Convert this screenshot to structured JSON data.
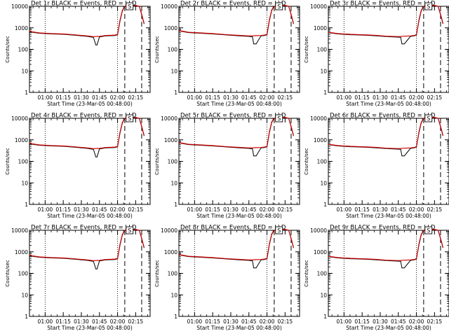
{
  "figure": {
    "ylabel": "Counts/sec",
    "xlabel": "Start Time (23-Mar-05 00:48:00)",
    "x_ticks": [
      "01:00",
      "01:15",
      "01:30",
      "01:45",
      "02:00",
      "02:15"
    ],
    "x_tick_minutes": [
      0,
      15,
      30,
      45,
      60,
      75
    ],
    "y_ticks": [
      "10000",
      "1000",
      "100",
      "10",
      "1"
    ],
    "y_tick_values": [
      10000,
      1000,
      100,
      10,
      1
    ],
    "marker_label": "S"
  },
  "colors": {
    "events": "#000000",
    "lld": "#cc0000",
    "background": "#ffffff"
  },
  "chart_data": [
    {
      "type": "line",
      "title": "Det 1r BLACK = Events, RED = LLD",
      "xlabel": "Start Time (23-Mar-05 00:48:00)",
      "ylabel": "Counts/sec",
      "y_scale": "log",
      "ylim": [
        1,
        10000
      ],
      "xlim_minutes_from_01_00": [
        -13,
        87
      ],
      "grid": false,
      "vlines_dotted": [
        0,
        60
      ],
      "vlines_dashed": [
        66,
        80
      ],
      "series": [
        {
          "name": "Events",
          "x": [
            -13,
            -5,
            5,
            15,
            25,
            35,
            40,
            42,
            43,
            45,
            50,
            55,
            58,
            60,
            62,
            64,
            66,
            68,
            69,
            70,
            72,
            74,
            75,
            78,
            80,
            82
          ],
          "y": [
            650,
            560,
            520,
            500,
            450,
            400,
            360,
            160,
            160,
            380,
            420,
            430,
            440,
            480,
            2000,
            6000,
            10000,
            11000,
            11000,
            11000,
            11000,
            11000,
            11000,
            10000,
            4000,
            1500
          ]
        },
        {
          "name": "LLD",
          "x": [
            -13,
            -5,
            5,
            15,
            25,
            35,
            40,
            45,
            50,
            55,
            58,
            60,
            62,
            64,
            66,
            68,
            70,
            75,
            78,
            80,
            82
          ],
          "y": [
            680,
            580,
            540,
            520,
            470,
            420,
            390,
            400,
            440,
            450,
            460,
            500,
            2200,
            6500,
            10000,
            11000,
            11000,
            11000,
            10000,
            4200,
            1600
          ]
        }
      ]
    },
    {
      "type": "line",
      "title": "Det 2r BLACK = Events, RED = LLD",
      "xlabel": "Start Time (23-Mar-05 00:48:00)",
      "ylabel": "Counts/sec",
      "y_scale": "log",
      "ylim": [
        1,
        10000
      ],
      "xlim_minutes_from_01_00": [
        -13,
        87
      ],
      "grid": false,
      "vlines_dotted": [
        0,
        60
      ],
      "vlines_dashed": [
        66,
        80
      ],
      "series": [
        {
          "name": "Events",
          "x": [
            -13,
            -5,
            5,
            15,
            25,
            35,
            45,
            48,
            49,
            51,
            55,
            58,
            60,
            62,
            64,
            66,
            68,
            70,
            75,
            78,
            80,
            82
          ],
          "y": [
            720,
            600,
            560,
            520,
            470,
            430,
            400,
            380,
            180,
            180,
            420,
            440,
            480,
            2200,
            6500,
            10000,
            11000,
            11000,
            11000,
            10000,
            4000,
            1500
          ]
        },
        {
          "name": "LLD",
          "x": [
            -13,
            -5,
            5,
            15,
            25,
            35,
            45,
            50,
            55,
            58,
            60,
            62,
            64,
            66,
            68,
            70,
            75,
            78,
            80,
            82
          ],
          "y": [
            750,
            620,
            580,
            540,
            490,
            450,
            420,
            430,
            440,
            460,
            500,
            2400,
            7000,
            10000,
            11000,
            11000,
            11000,
            10000,
            4200,
            1600
          ]
        }
      ]
    },
    {
      "type": "line",
      "title": "Det 3r BLACK = Events, RED = LLD",
      "xlabel": "Start Time (23-Mar-05 00:48:00)",
      "ylabel": "Counts/sec",
      "y_scale": "log",
      "ylim": [
        1,
        10000
      ],
      "xlim_minutes_from_01_00": [
        -13,
        87
      ],
      "grid": false,
      "vlines_dotted": [
        0,
        60
      ],
      "vlines_dashed": [
        66,
        80
      ],
      "series": [
        {
          "name": "Events",
          "x": [
            -13,
            -5,
            5,
            15,
            25,
            35,
            44,
            47,
            48,
            50,
            55,
            58,
            60,
            62,
            64,
            66,
            68,
            70,
            75,
            78,
            80,
            82
          ],
          "y": [
            600,
            520,
            480,
            460,
            430,
            390,
            370,
            360,
            180,
            180,
            400,
            420,
            460,
            2000,
            6000,
            10000,
            11000,
            11000,
            11000,
            10000,
            4000,
            1500
          ]
        },
        {
          "name": "LLD",
          "x": [
            -13,
            -5,
            5,
            15,
            25,
            35,
            45,
            50,
            55,
            58,
            60,
            62,
            64,
            66,
            68,
            70,
            75,
            78,
            80,
            82
          ],
          "y": [
            620,
            540,
            500,
            480,
            450,
            410,
            390,
            410,
            420,
            440,
            480,
            2200,
            6500,
            10000,
            11000,
            11000,
            11000,
            10000,
            4200,
            1600
          ]
        }
      ]
    },
    {
      "type": "line",
      "title": "Det 4r BLACK = Events, RED = LLD",
      "xlabel": "Start Time (23-Mar-05 00:48:00)",
      "ylabel": "Counts/sec",
      "y_scale": "log",
      "ylim": [
        1,
        10000
      ],
      "xlim_minutes_from_01_00": [
        -13,
        87
      ],
      "grid": false,
      "vlines_dotted": [
        0,
        60
      ],
      "vlines_dashed": [
        66,
        80
      ],
      "series": [
        {
          "name": "Events",
          "x": [
            -13,
            -5,
            5,
            15,
            25,
            35,
            40,
            42,
            43,
            45,
            50,
            55,
            58,
            60,
            62,
            64,
            66,
            68,
            70,
            75,
            78,
            80,
            82
          ],
          "y": [
            650,
            560,
            520,
            500,
            450,
            400,
            360,
            160,
            160,
            380,
            420,
            430,
            440,
            480,
            2000,
            6000,
            10000,
            11000,
            11000,
            11000,
            10000,
            4000,
            1500
          ]
        },
        {
          "name": "LLD",
          "x": [
            -13,
            -5,
            5,
            15,
            25,
            35,
            40,
            45,
            50,
            55,
            58,
            60,
            62,
            64,
            66,
            68,
            70,
            75,
            78,
            80,
            82
          ],
          "y": [
            680,
            580,
            540,
            520,
            470,
            420,
            390,
            400,
            440,
            450,
            460,
            500,
            2200,
            6500,
            10000,
            11000,
            11000,
            11000,
            10000,
            4200,
            1600
          ]
        }
      ]
    },
    {
      "type": "line",
      "title": "Det 5r BLACK = Events, RED = LLD",
      "xlabel": "Start Time (23-Mar-05 00:48:00)",
      "ylabel": "Counts/sec",
      "y_scale": "log",
      "ylim": [
        1,
        10000
      ],
      "xlim_minutes_from_01_00": [
        -13,
        87
      ],
      "grid": false,
      "vlines_dotted": [
        0,
        60
      ],
      "vlines_dashed": [
        66,
        80
      ],
      "series": [
        {
          "name": "Events",
          "x": [
            -13,
            -5,
            5,
            15,
            25,
            35,
            45,
            48,
            49,
            51,
            55,
            58,
            60,
            62,
            64,
            66,
            68,
            70,
            75,
            78,
            80,
            82
          ],
          "y": [
            720,
            600,
            560,
            520,
            470,
            430,
            400,
            380,
            180,
            180,
            420,
            440,
            480,
            2200,
            6500,
            10000,
            11000,
            11000,
            11000,
            10000,
            4000,
            1500
          ]
        },
        {
          "name": "LLD",
          "x": [
            -13,
            -5,
            5,
            15,
            25,
            35,
            45,
            50,
            55,
            58,
            60,
            62,
            64,
            66,
            68,
            70,
            75,
            78,
            80,
            82
          ],
          "y": [
            750,
            620,
            580,
            540,
            490,
            450,
            420,
            430,
            440,
            460,
            500,
            2400,
            7000,
            10000,
            11000,
            11000,
            11000,
            10000,
            4200,
            1600
          ]
        }
      ]
    },
    {
      "type": "line",
      "title": "Det 6r BLACK = Events, RED = LLD",
      "xlabel": "Start Time (23-Mar-05 00:48:00)",
      "ylabel": "Counts/sec",
      "y_scale": "log",
      "ylim": [
        1,
        10000
      ],
      "xlim_minutes_from_01_00": [
        -13,
        87
      ],
      "grid": false,
      "vlines_dotted": [
        0,
        60
      ],
      "vlines_dashed": [
        66,
        80
      ],
      "series": [
        {
          "name": "Events",
          "x": [
            -13,
            -5,
            5,
            15,
            25,
            35,
            44,
            47,
            48,
            50,
            55,
            58,
            60,
            62,
            64,
            66,
            68,
            70,
            75,
            78,
            80,
            82
          ],
          "y": [
            600,
            520,
            480,
            460,
            430,
            390,
            370,
            360,
            180,
            180,
            400,
            420,
            460,
            2000,
            6000,
            10000,
            11000,
            11000,
            11000,
            10000,
            4000,
            1500
          ]
        },
        {
          "name": "LLD",
          "x": [
            -13,
            -5,
            5,
            15,
            25,
            35,
            45,
            50,
            55,
            58,
            60,
            62,
            64,
            66,
            68,
            70,
            75,
            78,
            80,
            82
          ],
          "y": [
            620,
            540,
            500,
            480,
            450,
            410,
            390,
            410,
            420,
            440,
            480,
            2200,
            6500,
            10000,
            11000,
            11000,
            11000,
            10000,
            4200,
            1600
          ]
        }
      ]
    },
    {
      "type": "line",
      "title": "Det 7r BLACK = Events, RED = LLD",
      "xlabel": "Start Time (23-Mar-05 00:48:00)",
      "ylabel": "Counts/sec",
      "y_scale": "log",
      "ylim": [
        1,
        10000
      ],
      "xlim_minutes_from_01_00": [
        -13,
        87
      ],
      "grid": false,
      "vlines_dotted": [
        0,
        60
      ],
      "vlines_dashed": [
        66,
        80
      ],
      "series": [
        {
          "name": "Events",
          "x": [
            -13,
            -5,
            5,
            15,
            25,
            35,
            40,
            42,
            43,
            45,
            50,
            55,
            58,
            60,
            62,
            64,
            66,
            68,
            70,
            75,
            78,
            80,
            82
          ],
          "y": [
            650,
            560,
            520,
            500,
            450,
            400,
            360,
            160,
            160,
            380,
            420,
            430,
            440,
            480,
            2000,
            6000,
            10000,
            11000,
            11000,
            11000,
            10000,
            4000,
            1500
          ]
        },
        {
          "name": "LLD",
          "x": [
            -13,
            -5,
            5,
            15,
            25,
            35,
            40,
            45,
            50,
            55,
            58,
            60,
            62,
            64,
            66,
            68,
            70,
            75,
            78,
            80,
            82
          ],
          "y": [
            680,
            580,
            540,
            520,
            470,
            420,
            390,
            400,
            440,
            450,
            460,
            500,
            2200,
            6500,
            10000,
            11000,
            11000,
            11000,
            10000,
            4200,
            1600
          ]
        }
      ]
    },
    {
      "type": "line",
      "title": "Det 8r BLACK = Events, RED = LLD",
      "xlabel": "Start Time (23-Mar-05 00:48:00)",
      "ylabel": "Counts/sec",
      "y_scale": "log",
      "ylim": [
        1,
        10000
      ],
      "xlim_minutes_from_01_00": [
        -13,
        87
      ],
      "grid": false,
      "vlines_dotted": [
        0,
        60
      ],
      "vlines_dashed": [
        66,
        80
      ],
      "series": [
        {
          "name": "Events",
          "x": [
            -13,
            -5,
            5,
            15,
            25,
            35,
            45,
            48,
            49,
            51,
            55,
            58,
            60,
            62,
            64,
            66,
            68,
            70,
            75,
            78,
            80,
            82
          ],
          "y": [
            720,
            600,
            560,
            520,
            470,
            430,
            400,
            380,
            180,
            180,
            420,
            440,
            480,
            2200,
            6500,
            10000,
            11000,
            11000,
            11000,
            10000,
            4000,
            1500
          ]
        },
        {
          "name": "LLD",
          "x": [
            -13,
            -5,
            5,
            15,
            25,
            35,
            45,
            50,
            55,
            58,
            60,
            62,
            64,
            66,
            68,
            70,
            75,
            78,
            80,
            82
          ],
          "y": [
            750,
            620,
            580,
            540,
            490,
            450,
            420,
            430,
            440,
            460,
            500,
            2400,
            7000,
            10000,
            11000,
            11000,
            11000,
            10000,
            4200,
            1600
          ]
        }
      ]
    },
    {
      "type": "line",
      "title": "Det 9r BLACK = Events, RED = LLD",
      "xlabel": "Start Time (23-Mar-05 00:48:00)",
      "ylabel": "Counts/sec",
      "y_scale": "log",
      "ylim": [
        1,
        10000
      ],
      "xlim_minutes_from_01_00": [
        -13,
        87
      ],
      "grid": false,
      "vlines_dotted": [
        0,
        60
      ],
      "vlines_dashed": [
        66,
        80
      ],
      "series": [
        {
          "name": "Events",
          "x": [
            -13,
            -5,
            5,
            15,
            25,
            35,
            44,
            47,
            48,
            50,
            55,
            58,
            60,
            62,
            64,
            66,
            68,
            70,
            75,
            78,
            80,
            82
          ],
          "y": [
            600,
            520,
            480,
            460,
            430,
            390,
            370,
            360,
            180,
            180,
            400,
            420,
            460,
            2000,
            6000,
            10000,
            11000,
            11000,
            11000,
            10000,
            4000,
            1500
          ]
        },
        {
          "name": "LLD",
          "x": [
            -13,
            -5,
            5,
            15,
            25,
            35,
            45,
            50,
            55,
            58,
            60,
            62,
            64,
            66,
            68,
            70,
            75,
            78,
            80,
            82
          ],
          "y": [
            620,
            540,
            500,
            480,
            450,
            410,
            390,
            410,
            420,
            440,
            480,
            2200,
            6500,
            10000,
            11000,
            11000,
            11000,
            10000,
            4200,
            1600
          ]
        }
      ]
    }
  ]
}
